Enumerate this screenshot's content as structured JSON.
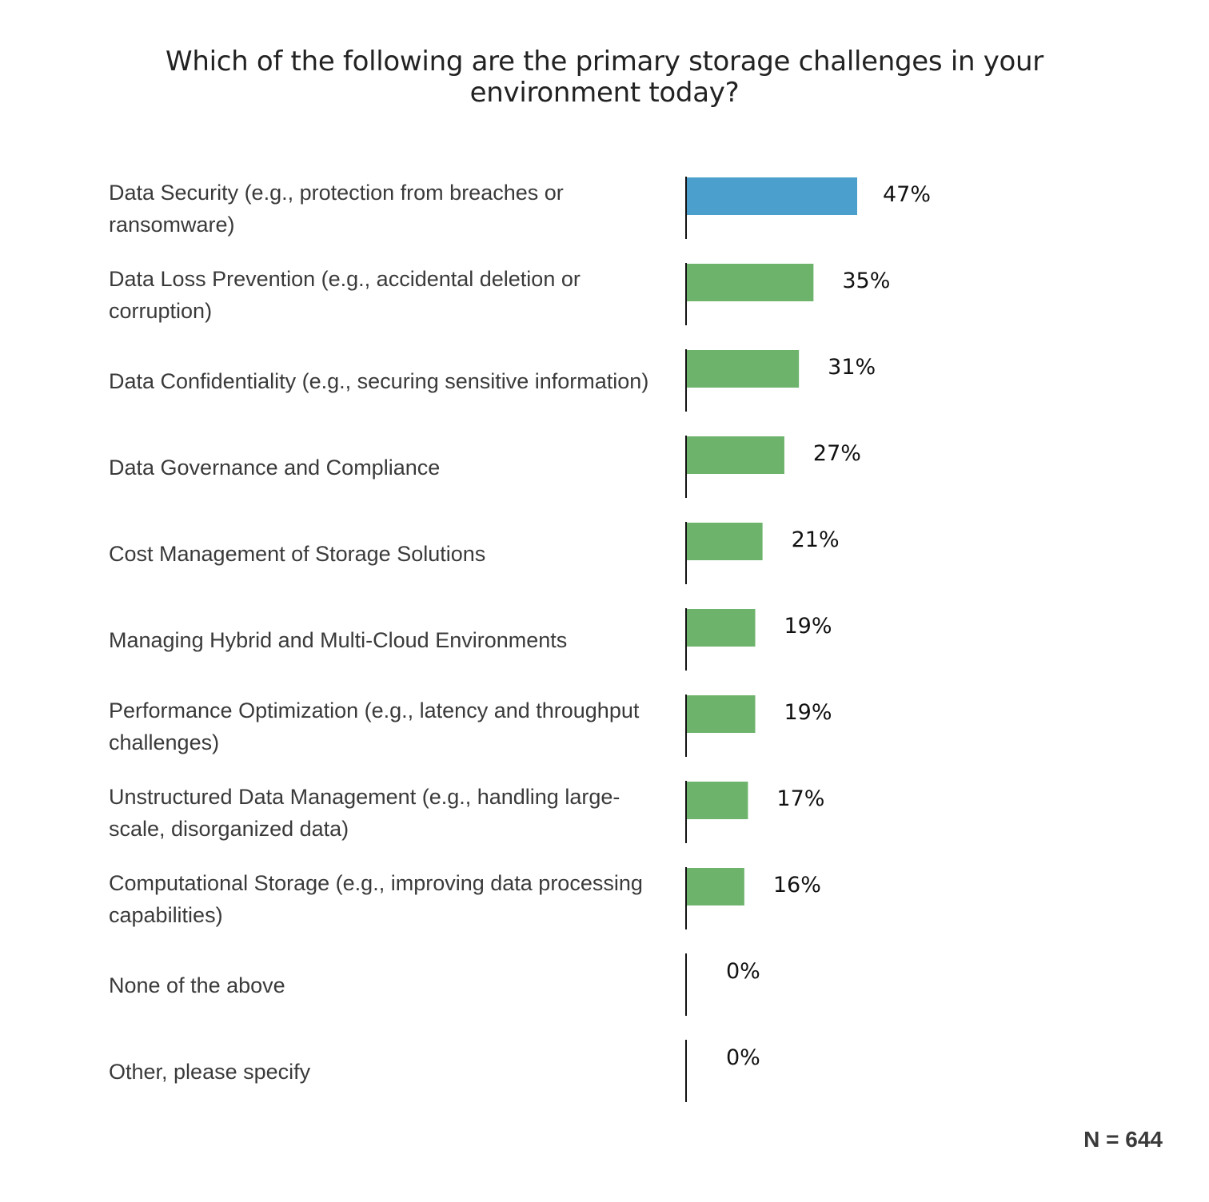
{
  "chart_data": {
    "type": "bar",
    "orientation": "horizontal",
    "title": "Which of the following are the primary storage challenges in your environment today?",
    "categories": [
      "Data Security (e.g., protection from breaches or ransomware)",
      "Data Loss Prevention (e.g., accidental deletion or corruption)",
      "Data Confidentiality (e.g., securing sensitive information)",
      "Data Governance and Compliance",
      "Cost Management of Storage Solutions",
      "Managing Hybrid and Multi-Cloud Environments",
      "Performance Optimization (e.g., latency and throughput challenges)",
      "Unstructured Data Management (e.g., handling large-scale, disorganized data)",
      "Computational Storage (e.g., improving data processing capabilities)",
      "None of the above",
      "Other, please specify"
    ],
    "values": [
      47,
      35,
      31,
      27,
      21,
      19,
      19,
      17,
      16,
      0,
      0
    ],
    "value_labels": [
      "47%",
      "35%",
      "31%",
      "27%",
      "21%",
      "19%",
      "19%",
      "17%",
      "16%",
      "0%",
      "0%"
    ],
    "unit": "%",
    "highlight_index": 0,
    "colors": {
      "highlight": "#4a9fcc",
      "default": "#6db36b",
      "axis": "#111111"
    },
    "grid": false,
    "legend": "none",
    "sample_size": "N = 644"
  }
}
